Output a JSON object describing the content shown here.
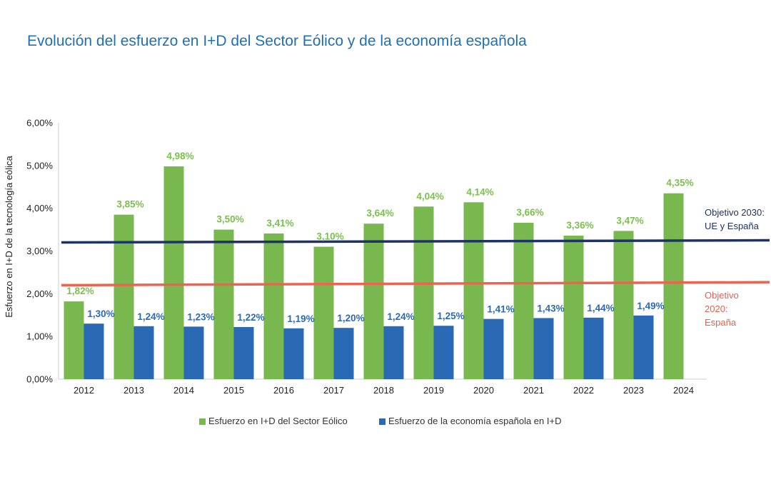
{
  "chart_data": {
    "type": "bar",
    "title": "Evolución del esfuerzo en I+D del Sector Eólico y de la economía española",
    "ylabel": "Esfuerzo en I+D de la tecnología eólica",
    "xlabel": "",
    "ylim": [
      0,
      6
    ],
    "yticks": [
      0,
      1,
      2,
      3,
      4,
      5,
      6
    ],
    "ytick_labels": [
      "0,00%",
      "1,00%",
      "2,00%",
      "3,00%",
      "4,00%",
      "5,00%",
      "6,00%"
    ],
    "categories": [
      "2012",
      "2013",
      "2014",
      "2015",
      "2016",
      "2017",
      "2018",
      "2019",
      "2020",
      "2021",
      "2022",
      "2023",
      "2024"
    ],
    "series": [
      {
        "name": "Esfuerzo en I+D del Sector Eólico",
        "color": "#79b84f",
        "values": [
          1.82,
          3.85,
          4.98,
          3.5,
          3.41,
          3.1,
          3.64,
          4.04,
          4.14,
          3.66,
          3.36,
          3.47,
          4.35
        ],
        "labels": [
          "1,82%",
          "3,85%",
          "4,98%",
          "3,50%",
          "3,41%",
          "3,10%",
          "3,64%",
          "4,04%",
          "4,14%",
          "3,66%",
          "3,36%",
          "3,47%",
          "4,35%"
        ]
      },
      {
        "name": "Esfuerzo de la economía española en I+D",
        "color": "#2a6ab5",
        "values": [
          1.3,
          1.24,
          1.23,
          1.22,
          1.19,
          1.2,
          1.24,
          1.25,
          1.41,
          1.43,
          1.44,
          1.49,
          null
        ],
        "labels": [
          "1,30%",
          "1,24%",
          "1,23%",
          "1,22%",
          "1,19%",
          "1,20%",
          "1,24%",
          "1,25%",
          "1,41%",
          "1,43%",
          "1,44%",
          "1,49%",
          ""
        ]
      }
    ],
    "reference_lines": [
      {
        "name": "Objetivo 2030: UE y España",
        "label_lines": [
          "Objetivo 2030:",
          "UE y España"
        ],
        "value_start": 3.2,
        "value_end": 3.25,
        "color": "#1d3266"
      },
      {
        "name": "Objetivo 2020: España",
        "label_lines": [
          "Objetivo",
          "2020:",
          "España"
        ],
        "value_start": 2.2,
        "value_end": 2.27,
        "color": "#ec6450"
      }
    ],
    "grid": false,
    "legend_position": "bottom"
  }
}
